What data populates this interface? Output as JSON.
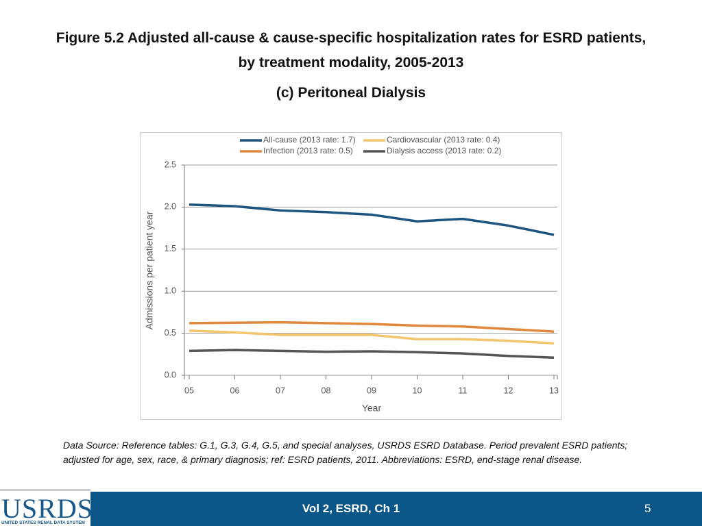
{
  "header": {
    "title_lines": [
      "Figure 5.2 Adjusted all-cause & cause-specific hospitalization rates for ESRD patients,",
      "by treatment modality, 2005-2013"
    ],
    "subtitle": "(c) Peritoneal Dialysis"
  },
  "chart_data": {
    "type": "line",
    "xlabel": "Year",
    "ylabel": "Admissions per patient year",
    "categories": [
      "05",
      "06",
      "07",
      "08",
      "09",
      "10",
      "11",
      "12",
      "13"
    ],
    "series": [
      {
        "name": "All-cause (2013 rate: 1.7)",
        "color": "#1d5580",
        "values": [
          2.03,
          2.01,
          1.96,
          1.94,
          1.91,
          1.83,
          1.86,
          1.78,
          1.67
        ]
      },
      {
        "name": "Cardiovascular (2013 rate: 0.4)",
        "color": "#f3c56e",
        "values": [
          0.53,
          0.51,
          0.48,
          0.48,
          0.48,
          0.43,
          0.43,
          0.41,
          0.38
        ]
      },
      {
        "name": "Infection (2013 rate: 0.5)",
        "color": "#e0883c",
        "values": [
          0.62,
          0.625,
          0.63,
          0.62,
          0.61,
          0.59,
          0.58,
          0.55,
          0.52
        ]
      },
      {
        "name": "Dialysis access (2013 rate: 0.2)",
        "color": "#555555",
        "values": [
          0.29,
          0.3,
          0.29,
          0.28,
          0.285,
          0.275,
          0.26,
          0.23,
          0.21
        ]
      }
    ],
    "ylim": [
      0,
      2.5
    ],
    "yticks": [
      {
        "value": 0,
        "label": "0.0"
      },
      {
        "value": 0.5,
        "label": "0.5"
      },
      {
        "value": 1,
        "label": "1.0"
      },
      {
        "value": 1.5,
        "label": "1.5"
      },
      {
        "value": 2,
        "label": "2.0"
      },
      {
        "value": 2.5,
        "label": "2.5"
      }
    ],
    "grid": true
  },
  "footnote": "Data Source: Reference tables: G.1, G.3, G.4, G.5, and special analyses, USRDS ESRD Database. Period prevalent ESRD patients; adjusted for age, sex, race, & primary diagnosis; ref: ESRD patients, 2011. Abbreviations: ESRD, end-stage renal disease.",
  "footer": {
    "logo": "USRDS",
    "logo_subtitle": "UNITED STATES RENAL DATA SYSTEM",
    "text": "Vol 2, ESRD, Ch 1",
    "page": "5"
  }
}
